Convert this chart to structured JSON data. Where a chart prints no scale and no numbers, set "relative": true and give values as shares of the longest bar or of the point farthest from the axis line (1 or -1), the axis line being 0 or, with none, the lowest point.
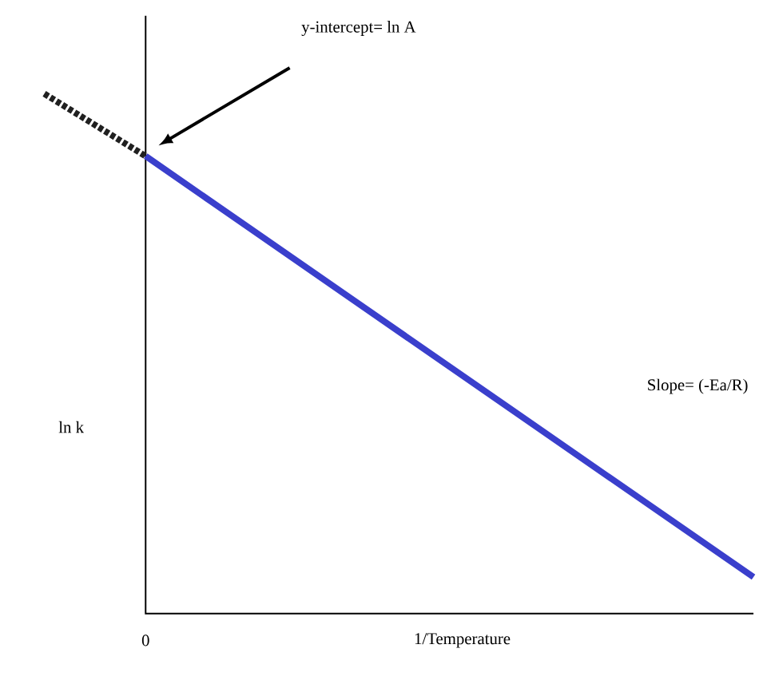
{
  "chart_data": {
    "type": "line",
    "relative": true,
    "categories": [
      null,
      null,
      null,
      null,
      null,
      null,
      null,
      null
    ],
    "xlabel": "1/Temperature",
    "ylabel": "ln k",
    "annotations": [
      "y-intercept= ln A",
      "Slope= (-Ea/R)",
      "0"
    ],
    "series": [
      {
        "color": "#202020",
        "line_style": "dotted",
        "values": [
          1,
          0.88,
          null,
          null,
          null,
          null,
          null,
          null
        ]
      },
      {
        "color": "#3a3fcc",
        "line_style": "solid",
        "values": [
          null,
          0.88,
          0.745,
          0.61,
          0.475,
          0.34,
          0.205,
          0.07
        ]
      }
    ]
  }
}
